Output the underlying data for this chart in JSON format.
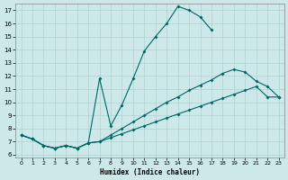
{
  "xlabel": "Humidex (Indice chaleur)",
  "background_color": "#cce8e8",
  "grid_color": "#b0d0d0",
  "line_color": "#006666",
  "xlim": [
    -0.5,
    23.5
  ],
  "ylim": [
    5.8,
    17.5
  ],
  "xticks": [
    0,
    1,
    2,
    3,
    4,
    5,
    6,
    7,
    8,
    9,
    10,
    11,
    12,
    13,
    14,
    15,
    16,
    17,
    18,
    19,
    20,
    21,
    22,
    23
  ],
  "yticks": [
    6,
    7,
    8,
    9,
    10,
    11,
    12,
    13,
    14,
    15,
    16,
    17
  ],
  "curve_top": {
    "x": [
      0,
      1,
      2,
      3,
      4,
      5,
      6,
      7,
      8,
      9,
      10,
      11,
      12,
      13,
      14,
      15,
      16,
      17
    ],
    "y": [
      7.5,
      7.2,
      6.7,
      6.5,
      6.7,
      6.5,
      6.9,
      11.8,
      8.2,
      9.8,
      11.8,
      13.9,
      15.0,
      16.0,
      17.3,
      17.0,
      16.5,
      15.5
    ]
  },
  "curve_mid": {
    "x": [
      0,
      1,
      2,
      3,
      4,
      5,
      6,
      7,
      8,
      9,
      10,
      11,
      12,
      13,
      14,
      15,
      16,
      17,
      18,
      19,
      20,
      21,
      22,
      23
    ],
    "y": [
      7.5,
      7.2,
      6.7,
      6.5,
      6.7,
      6.5,
      6.9,
      7.0,
      7.5,
      8.0,
      8.5,
      9.0,
      9.5,
      10.0,
      10.4,
      10.9,
      11.3,
      11.7,
      12.2,
      12.5,
      12.3,
      11.6,
      11.2,
      10.4
    ]
  },
  "curve_bot": {
    "x": [
      0,
      1,
      2,
      3,
      4,
      5,
      6,
      7,
      8,
      9,
      10,
      11,
      12,
      13,
      14,
      15,
      16,
      17,
      18,
      19,
      20,
      21,
      22,
      23
    ],
    "y": [
      7.5,
      7.2,
      6.7,
      6.5,
      6.7,
      6.5,
      6.9,
      7.0,
      7.3,
      7.6,
      7.9,
      8.2,
      8.5,
      8.8,
      9.1,
      9.4,
      9.7,
      10.0,
      10.3,
      10.6,
      10.9,
      11.2,
      10.4,
      10.4
    ]
  }
}
